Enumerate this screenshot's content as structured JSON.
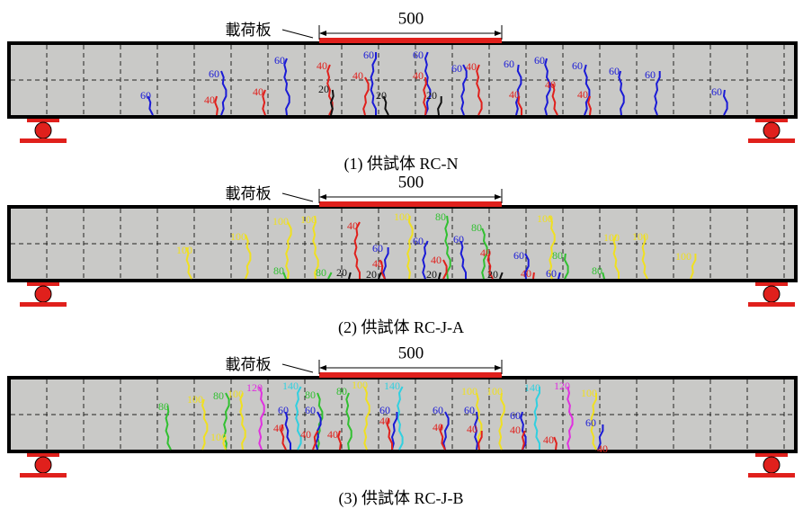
{
  "panels": [
    {
      "plate_label": "載荷板",
      "dimension": "500",
      "caption": "(1) 供試体 RC-N",
      "crack_labels": [
        "60",
        "60",
        "40",
        "60",
        "40",
        "40",
        "20",
        "60",
        "40",
        "20",
        "60",
        "40",
        "20",
        "60",
        "40",
        "60",
        "40",
        "60",
        "40",
        "60",
        "40",
        "60",
        "60",
        "60"
      ]
    },
    {
      "plate_label": "載荷板",
      "dimension": "500",
      "caption": "(2) 供試体 RC-J-A",
      "crack_labels": [
        "100",
        "100",
        "100",
        "100",
        "80",
        "80",
        "20",
        "40",
        "60",
        "40",
        "20",
        "100",
        "80",
        "60",
        "40",
        "20",
        "60",
        "80",
        "40",
        "20",
        "40",
        "60",
        "100",
        "80",
        "60",
        "100",
        "80",
        "100",
        "100"
      ]
    },
    {
      "plate_label": "載荷板",
      "dimension": "500",
      "caption": "(3) 供試体 RC-J-B",
      "crack_labels": [
        "80",
        "100",
        "80",
        "100",
        "120",
        "140",
        "80",
        "60",
        "60",
        "40",
        "40",
        "40",
        "80",
        "100",
        "140",
        "60",
        "40",
        "60",
        "40",
        "100",
        "60",
        "40",
        "100",
        "60",
        "40",
        "140",
        "120",
        "100",
        "60",
        "40",
        "40",
        "100"
      ]
    }
  ]
}
